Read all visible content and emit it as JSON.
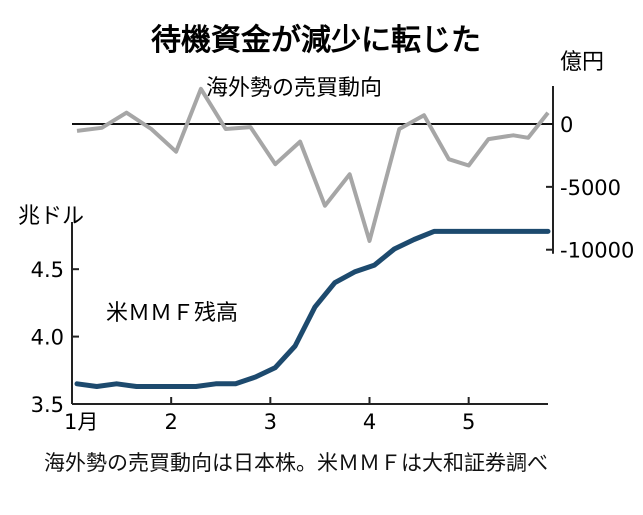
{
  "title": "待機資金が減少に転じた",
  "note": "海外勢の売買動向は日本株。米ＭＭＦは大和証券調べ",
  "chart_data": [
    {
      "type": "line",
      "name": "foreign_net_trading",
      "series_label": "海外勢の売買動向",
      "unit": "億円",
      "y_ticks": [
        0,
        -5000,
        -10000
      ],
      "ylim": [
        -10500,
        3500
      ],
      "x_ticks": [
        "1月",
        "2",
        "3",
        "4",
        "5"
      ],
      "x_tick_positions": [
        1,
        2,
        3,
        4,
        5
      ],
      "xlim": [
        1,
        5.8
      ],
      "color": "#a6a6a6",
      "points": [
        [
          1.05,
          -550
        ],
        [
          1.3,
          -300
        ],
        [
          1.55,
          900
        ],
        [
          1.8,
          -400
        ],
        [
          2.05,
          -2200
        ],
        [
          2.3,
          2800
        ],
        [
          2.55,
          -400
        ],
        [
          2.8,
          -250
        ],
        [
          3.05,
          -3200
        ],
        [
          3.3,
          -1400
        ],
        [
          3.55,
          -6500
        ],
        [
          3.8,
          -4000
        ],
        [
          4.0,
          -9300
        ],
        [
          4.3,
          -400
        ],
        [
          4.55,
          700
        ],
        [
          4.8,
          -2800
        ],
        [
          5.0,
          -3300
        ],
        [
          5.2,
          -1200
        ],
        [
          5.45,
          -900
        ],
        [
          5.6,
          -1100
        ],
        [
          5.8,
          900
        ]
      ]
    },
    {
      "type": "line",
      "name": "us_mmf_balance",
      "series_label": "米ＭＭＦ残高",
      "unit": "兆ドル",
      "y_ticks": [
        3.5,
        4.0,
        4.5
      ],
      "y_tick_labels": [
        "3.5",
        "4.0",
        "4.5"
      ],
      "ylim": [
        3.5,
        4.85
      ],
      "x_ticks": [
        "1月",
        "2",
        "3",
        "4",
        "5"
      ],
      "x_tick_positions": [
        1,
        2,
        3,
        4,
        5
      ],
      "xlim": [
        1,
        5.8
      ],
      "color": "#1d4a6e",
      "points": [
        [
          1.05,
          3.65
        ],
        [
          1.25,
          3.63
        ],
        [
          1.45,
          3.65
        ],
        [
          1.65,
          3.63
        ],
        [
          1.85,
          3.63
        ],
        [
          2.05,
          3.63
        ],
        [
          2.25,
          3.63
        ],
        [
          2.45,
          3.65
        ],
        [
          2.65,
          3.65
        ],
        [
          2.85,
          3.7
        ],
        [
          3.05,
          3.77
        ],
        [
          3.25,
          3.93
        ],
        [
          3.45,
          4.22
        ],
        [
          3.65,
          4.4
        ],
        [
          3.85,
          4.48
        ],
        [
          4.05,
          4.53
        ],
        [
          4.25,
          4.65
        ],
        [
          4.45,
          4.72
        ],
        [
          4.65,
          4.78
        ],
        [
          4.85,
          4.78
        ],
        [
          5.05,
          4.78
        ],
        [
          5.25,
          4.78
        ],
        [
          5.45,
          4.78
        ],
        [
          5.8,
          4.78
        ]
      ]
    }
  ]
}
